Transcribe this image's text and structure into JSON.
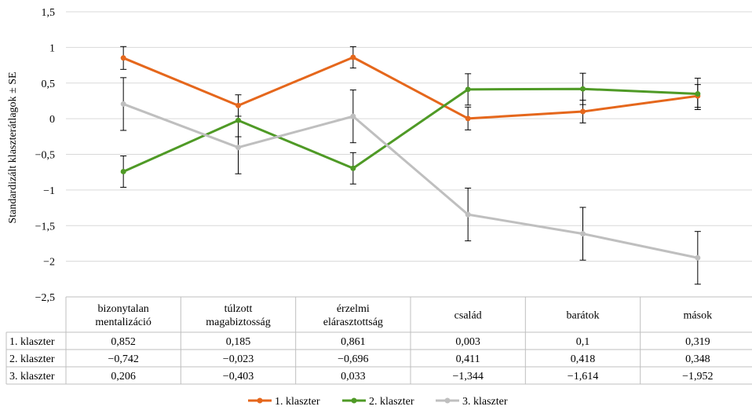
{
  "chart_data": {
    "type": "line",
    "title": "",
    "xlabel": "",
    "ylabel": "Standardizált klaszterátlagok ± SE",
    "ylim": [
      -2.5,
      1.5
    ],
    "yticks": [
      1.5,
      1,
      0.5,
      0,
      -0.5,
      -1,
      -1.5,
      -2,
      -2.5
    ],
    "ytick_labels": [
      "1,5",
      "1",
      "0,5",
      "0",
      "−0,5",
      "−1",
      "−1,5",
      "−2",
      "−2,5"
    ],
    "grid": true,
    "legend_position": "bottom",
    "categories": [
      [
        "bizonytalan",
        "mentalizáció"
      ],
      [
        "túlzott",
        "magabiztosság"
      ],
      [
        "érzelmi",
        "elárasztottság"
      ],
      [
        "család"
      ],
      [
        "barátok"
      ],
      [
        "mások"
      ]
    ],
    "series": [
      {
        "name": "1. klaszter",
        "color": "#E5671C",
        "values": [
          0.852,
          0.185,
          0.861,
          0.003,
          0.1,
          0.319
        ],
        "se": [
          0.16,
          0.15,
          0.15,
          0.16,
          0.16,
          0.16
        ],
        "labels": [
          "0,852",
          "0,185",
          "0,861",
          "0,003",
          "0,1",
          "0,319"
        ]
      },
      {
        "name": "2. klaszter",
        "color": "#4F9A26",
        "values": [
          -0.742,
          -0.023,
          -0.696,
          0.411,
          0.418,
          0.348
        ],
        "se": [
          0.22,
          0.23,
          0.22,
          0.22,
          0.22,
          0.22
        ],
        "labels": [
          "−0,742",
          "−0,023",
          "−0,696",
          "0,411",
          "0,418",
          "0,348"
        ]
      },
      {
        "name": "3. klaszter",
        "color": "#BFBFBF",
        "values": [
          0.206,
          -0.403,
          0.033,
          -1.344,
          -1.614,
          -1.952
        ],
        "se": [
          0.37,
          0.37,
          0.37,
          0.37,
          0.37,
          0.37
        ],
        "labels": [
          "0,206",
          "−0,403",
          "0,033",
          "−1,344",
          "−1,614",
          "−1,952"
        ]
      }
    ]
  }
}
